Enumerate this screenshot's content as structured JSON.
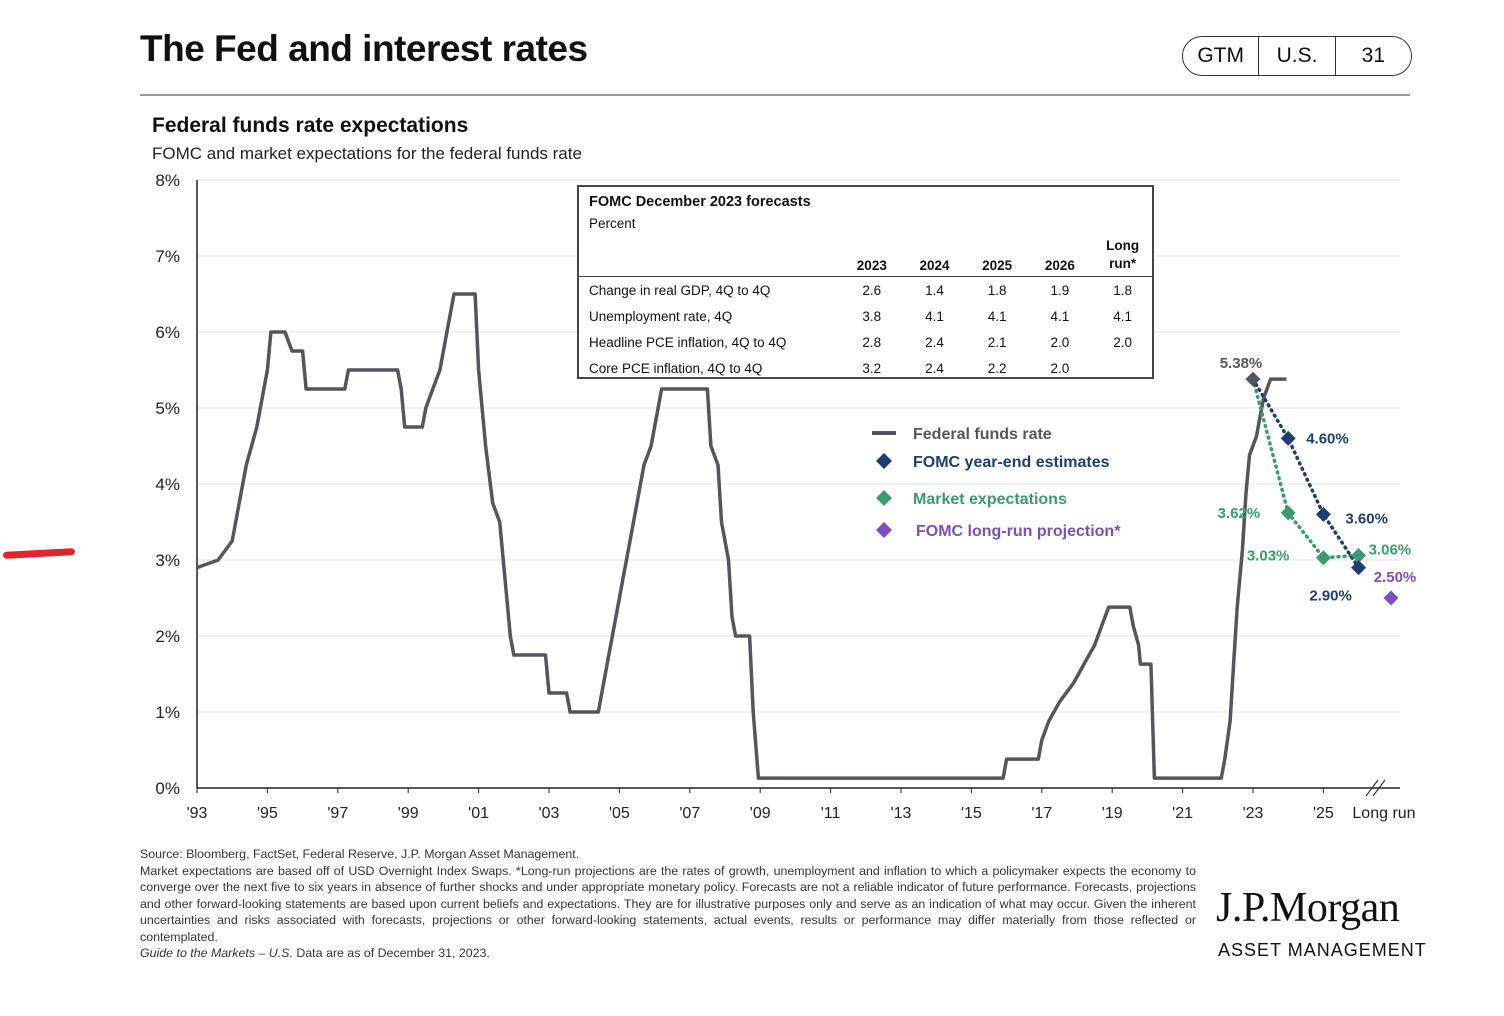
{
  "header": {
    "title": "The Fed and interest rates",
    "badges": [
      "GTM",
      "U.S.",
      "31"
    ]
  },
  "chart_data": {
    "type": "line",
    "title": "Federal funds rate expectations",
    "subtitle": "FOMC and market expectations for the federal funds rate",
    "ylim": [
      0,
      8
    ],
    "ytick_labels": [
      "0%",
      "1%",
      "2%",
      "3%",
      "4%",
      "5%",
      "6%",
      "7%",
      "8%"
    ],
    "xtick_labels": [
      "'93",
      "'95",
      "'97",
      "'99",
      "'01",
      "'03",
      "'05",
      "'07",
      "'09",
      "'11",
      "'13",
      "'15",
      "'17",
      "'19",
      "'21",
      "'23",
      "'25",
      "Long run"
    ],
    "grid": true,
    "legend_position": "center-right",
    "series": [
      {
        "name": "Federal funds rate",
        "color": "#54565a",
        "points": [
          [
            1993.0,
            2.9
          ],
          [
            1993.6,
            3.0
          ],
          [
            1994.0,
            3.25
          ],
          [
            1994.2,
            3.75
          ],
          [
            1994.4,
            4.25
          ],
          [
            1994.7,
            4.75
          ],
          [
            1995.0,
            5.5
          ],
          [
            1995.1,
            6.0
          ],
          [
            1995.5,
            6.0
          ],
          [
            1995.7,
            5.75
          ],
          [
            1996.0,
            5.75
          ],
          [
            1996.1,
            5.25
          ],
          [
            1997.2,
            5.25
          ],
          [
            1997.3,
            5.5
          ],
          [
            1998.7,
            5.5
          ],
          [
            1998.8,
            5.25
          ],
          [
            1998.9,
            4.75
          ],
          [
            1999.4,
            4.75
          ],
          [
            1999.5,
            5.0
          ],
          [
            1999.7,
            5.25
          ],
          [
            1999.9,
            5.5
          ],
          [
            2000.1,
            6.0
          ],
          [
            2000.3,
            6.5
          ],
          [
            2000.9,
            6.5
          ],
          [
            2001.0,
            5.5
          ],
          [
            2001.2,
            4.5
          ],
          [
            2001.4,
            3.75
          ],
          [
            2001.6,
            3.5
          ],
          [
            2001.8,
            2.5
          ],
          [
            2001.9,
            2.0
          ],
          [
            2002.0,
            1.75
          ],
          [
            2002.9,
            1.75
          ],
          [
            2003.0,
            1.25
          ],
          [
            2003.5,
            1.25
          ],
          [
            2003.6,
            1.0
          ],
          [
            2004.4,
            1.0
          ],
          [
            2004.5,
            1.25
          ],
          [
            2004.7,
            1.75
          ],
          [
            2004.9,
            2.25
          ],
          [
            2005.1,
            2.75
          ],
          [
            2005.3,
            3.25
          ],
          [
            2005.5,
            3.75
          ],
          [
            2005.7,
            4.25
          ],
          [
            2005.9,
            4.5
          ],
          [
            2006.0,
            4.75
          ],
          [
            2006.2,
            5.25
          ],
          [
            2007.5,
            5.25
          ],
          [
            2007.6,
            4.5
          ],
          [
            2007.8,
            4.25
          ],
          [
            2007.9,
            3.5
          ],
          [
            2008.1,
            3.0
          ],
          [
            2008.2,
            2.25
          ],
          [
            2008.3,
            2.0
          ],
          [
            2008.7,
            2.0
          ],
          [
            2008.8,
            1.0
          ],
          [
            2008.95,
            0.13
          ],
          [
            2015.9,
            0.13
          ],
          [
            2016.0,
            0.38
          ],
          [
            2016.9,
            0.38
          ],
          [
            2017.0,
            0.63
          ],
          [
            2017.2,
            0.88
          ],
          [
            2017.5,
            1.13
          ],
          [
            2017.9,
            1.38
          ],
          [
            2018.2,
            1.63
          ],
          [
            2018.5,
            1.88
          ],
          [
            2018.7,
            2.13
          ],
          [
            2018.9,
            2.38
          ],
          [
            2019.5,
            2.38
          ],
          [
            2019.6,
            2.13
          ],
          [
            2019.75,
            1.88
          ],
          [
            2019.8,
            1.63
          ],
          [
            2020.1,
            1.63
          ],
          [
            2020.2,
            0.13
          ],
          [
            2022.1,
            0.13
          ],
          [
            2022.2,
            0.38
          ],
          [
            2022.35,
            0.88
          ],
          [
            2022.45,
            1.63
          ],
          [
            2022.55,
            2.38
          ],
          [
            2022.7,
            3.13
          ],
          [
            2022.8,
            3.88
          ],
          [
            2022.9,
            4.38
          ],
          [
            2023.1,
            4.63
          ],
          [
            2023.2,
            4.88
          ],
          [
            2023.3,
            5.13
          ],
          [
            2023.5,
            5.38
          ],
          [
            2023.95,
            5.38
          ]
        ]
      }
    ],
    "fomc_estimates": {
      "name": "FOMC year-end estimates",
      "color": "#1f3d6e",
      "points": [
        {
          "x": 2023,
          "y": 5.38,
          "label": "5.38%"
        },
        {
          "x": 2024,
          "y": 4.6,
          "label": "4.60%"
        },
        {
          "x": 2025,
          "y": 3.6,
          "label": "3.60%"
        },
        {
          "x": 2026,
          "y": 2.9,
          "label": "2.90%"
        }
      ]
    },
    "market_expectations": {
      "name": "Market expectations",
      "color": "#3c9a6c",
      "points": [
        {
          "x": 2023,
          "y": 5.38,
          "label": ""
        },
        {
          "x": 2024,
          "y": 3.62,
          "label": "3.62%"
        },
        {
          "x": 2025,
          "y": 3.03,
          "label": "3.03%"
        },
        {
          "x": 2026,
          "y": 3.06,
          "label": "3.06%"
        }
      ]
    },
    "long_run_projection": {
      "name": "FOMC long-run projection*",
      "color": "#7b4fb8",
      "point": {
        "x": "Long run",
        "y": 2.5,
        "label": "2.50%"
      }
    },
    "legend": [
      {
        "label": "Federal funds rate",
        "color": "#54565a",
        "marker": "line"
      },
      {
        "label": "FOMC year-end estimates",
        "color": "#1f3d6e",
        "marker": "diamond"
      },
      {
        "label": "Market expectations",
        "color": "#3c9a6c",
        "marker": "diamond"
      },
      {
        "label": "FOMC long-run projection*",
        "color": "#7b4fb8",
        "marker": "diamond"
      }
    ],
    "forecast_table": {
      "title": "FOMC December 2023 forecasts",
      "unit": "Percent",
      "columns": [
        "2023",
        "2024",
        "2025",
        "2026",
        "Long run*"
      ],
      "rows": [
        {
          "label": "Change in real GDP, 4Q to 4Q",
          "values": [
            "2.6",
            "1.4",
            "1.8",
            "1.9",
            "1.8"
          ]
        },
        {
          "label": "Unemployment rate, 4Q",
          "values": [
            "3.8",
            "4.1",
            "4.1",
            "4.1",
            "4.1"
          ]
        },
        {
          "label": "Headline PCE inflation, 4Q to 4Q",
          "values": [
            "2.8",
            "2.4",
            "2.1",
            "2.0",
            "2.0"
          ]
        },
        {
          "label": "Core PCE inflation, 4Q to 4Q",
          "values": [
            "3.2",
            "2.4",
            "2.2",
            "2.0",
            ""
          ]
        }
      ]
    }
  },
  "footnote": {
    "source": "Source: Bloomberg, FactSet, Federal Reserve, J.P. Morgan Asset Management.",
    "body": "Market expectations are based off of USD Overnight Index Swaps. *Long-run projections are the rates of growth, unemployment and inflation to which a policymaker expects the economy to converge over the next five to six years in absence of further shocks and under appropriate monetary policy. Forecasts are not a reliable indicator of future performance. Forecasts, projections and other forward-looking statements are based upon current beliefs and expectations. They are for illustrative purposes only and serve as an indication of what may occur. Given the inherent uncertainties and risks associated with forecasts, projections or other forward-looking statements, actual events, results or performance may differ materially from those reflected or contemplated.",
    "guide": "Guide to the Markets – U.S.",
    "asof": " Data are as of December 31, 2023."
  },
  "logo": {
    "name": "J.P.Morgan",
    "sub": "ASSET MANAGEMENT"
  },
  "annotation": {
    "color": "#e3222b"
  }
}
